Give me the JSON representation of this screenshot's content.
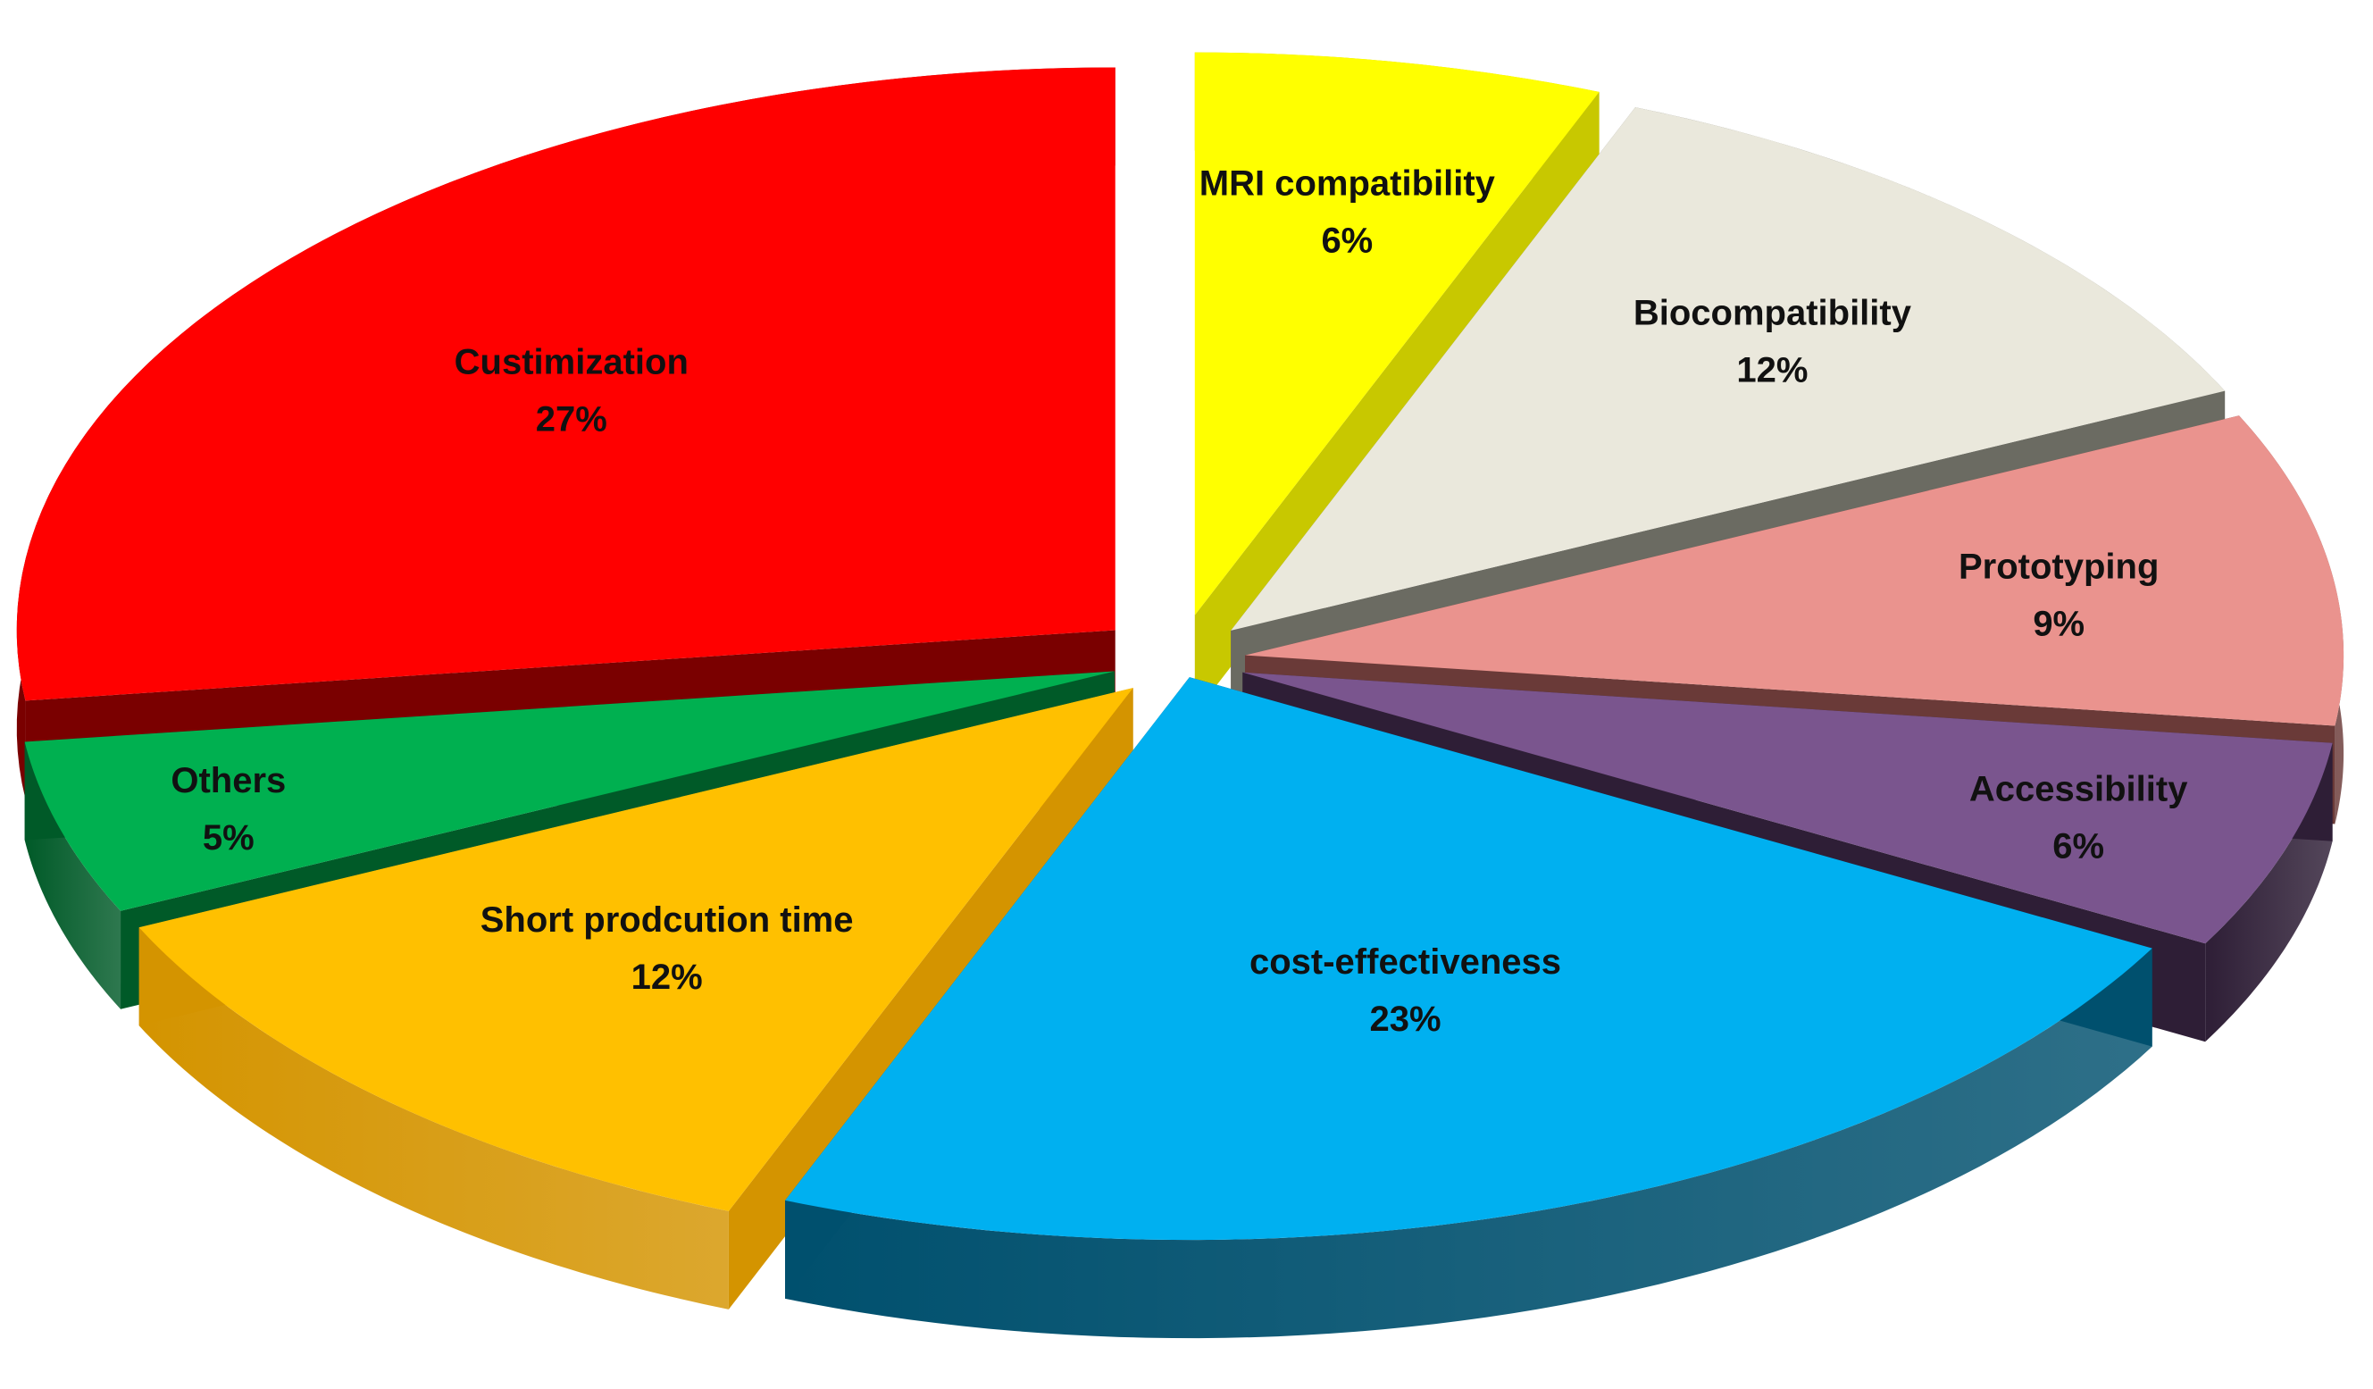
{
  "chart_data": {
    "type": "pie",
    "style": "3d-exploded",
    "slices": [
      {
        "label": "MRI compatibility",
        "value": 6,
        "value_label": "6%",
        "color": "#FFFF00",
        "side_color": "#C8C800"
      },
      {
        "label": "Biocompatibility",
        "value": 12,
        "value_label": "12%",
        "color": "#EAE8DC",
        "side_color": "#6B6B62"
      },
      {
        "label": "Prototyping",
        "value": 9,
        "value_label": "9%",
        "color": "#EA938E",
        "side_color": "#6A3A38"
      },
      {
        "label": "Accessibility",
        "value": 6,
        "value_label": "6%",
        "color": "#7A558E",
        "side_color": "#2E1E36"
      },
      {
        "label": "cost-effectiveness",
        "value": 23,
        "value_label": "23%",
        "color": "#00B0F0",
        "side_color": "#00506E"
      },
      {
        "label": "Short prodcution time",
        "value": 12,
        "value_label": "12%",
        "color": "#FFC000",
        "side_color": "#D49400"
      },
      {
        "label": "Others",
        "value": 5,
        "value_label": "5%",
        "color": "#00B050",
        "side_color": "#005A28"
      },
      {
        "label": "Custimization",
        "value": 27,
        "value_label": "27%",
        "color": "#FF0000",
        "side_color": "#7A0000"
      }
    ],
    "legend": "none"
  }
}
